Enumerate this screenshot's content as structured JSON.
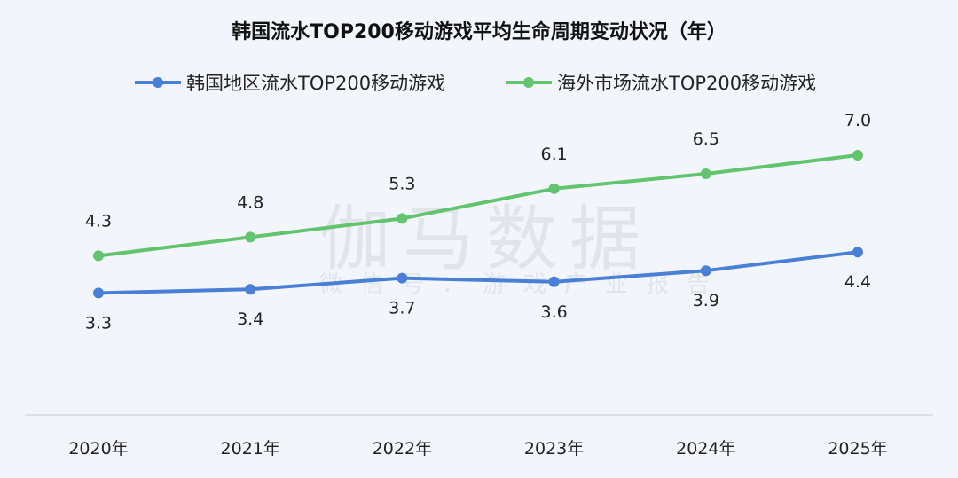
{
  "chart_data": {
    "type": "line",
    "title": "韩国流水TOP200移动游戏平均生命周期变动状况（年）",
    "categories": [
      "2020年",
      "2021年",
      "2022年",
      "2023年",
      "2024年",
      "2025年"
    ],
    "series": [
      {
        "name": "韩国地区流水TOP200移动游戏",
        "color": "#4a7fd6",
        "values": [
          3.3,
          3.4,
          3.7,
          3.6,
          3.9,
          4.4
        ],
        "label_position": "below"
      },
      {
        "name": "海外市场流水TOP200移动游戏",
        "color": "#62c46e",
        "values": [
          4.3,
          4.8,
          5.3,
          6.1,
          6.5,
          7.0
        ],
        "label_position": "above"
      }
    ],
    "ylim": [
      0,
      8
    ],
    "grid": false,
    "legend": "top",
    "xlabel": "",
    "ylabel": ""
  },
  "watermark": {
    "main": "伽马数据",
    "sub": "微信号：游戏产业报告"
  }
}
